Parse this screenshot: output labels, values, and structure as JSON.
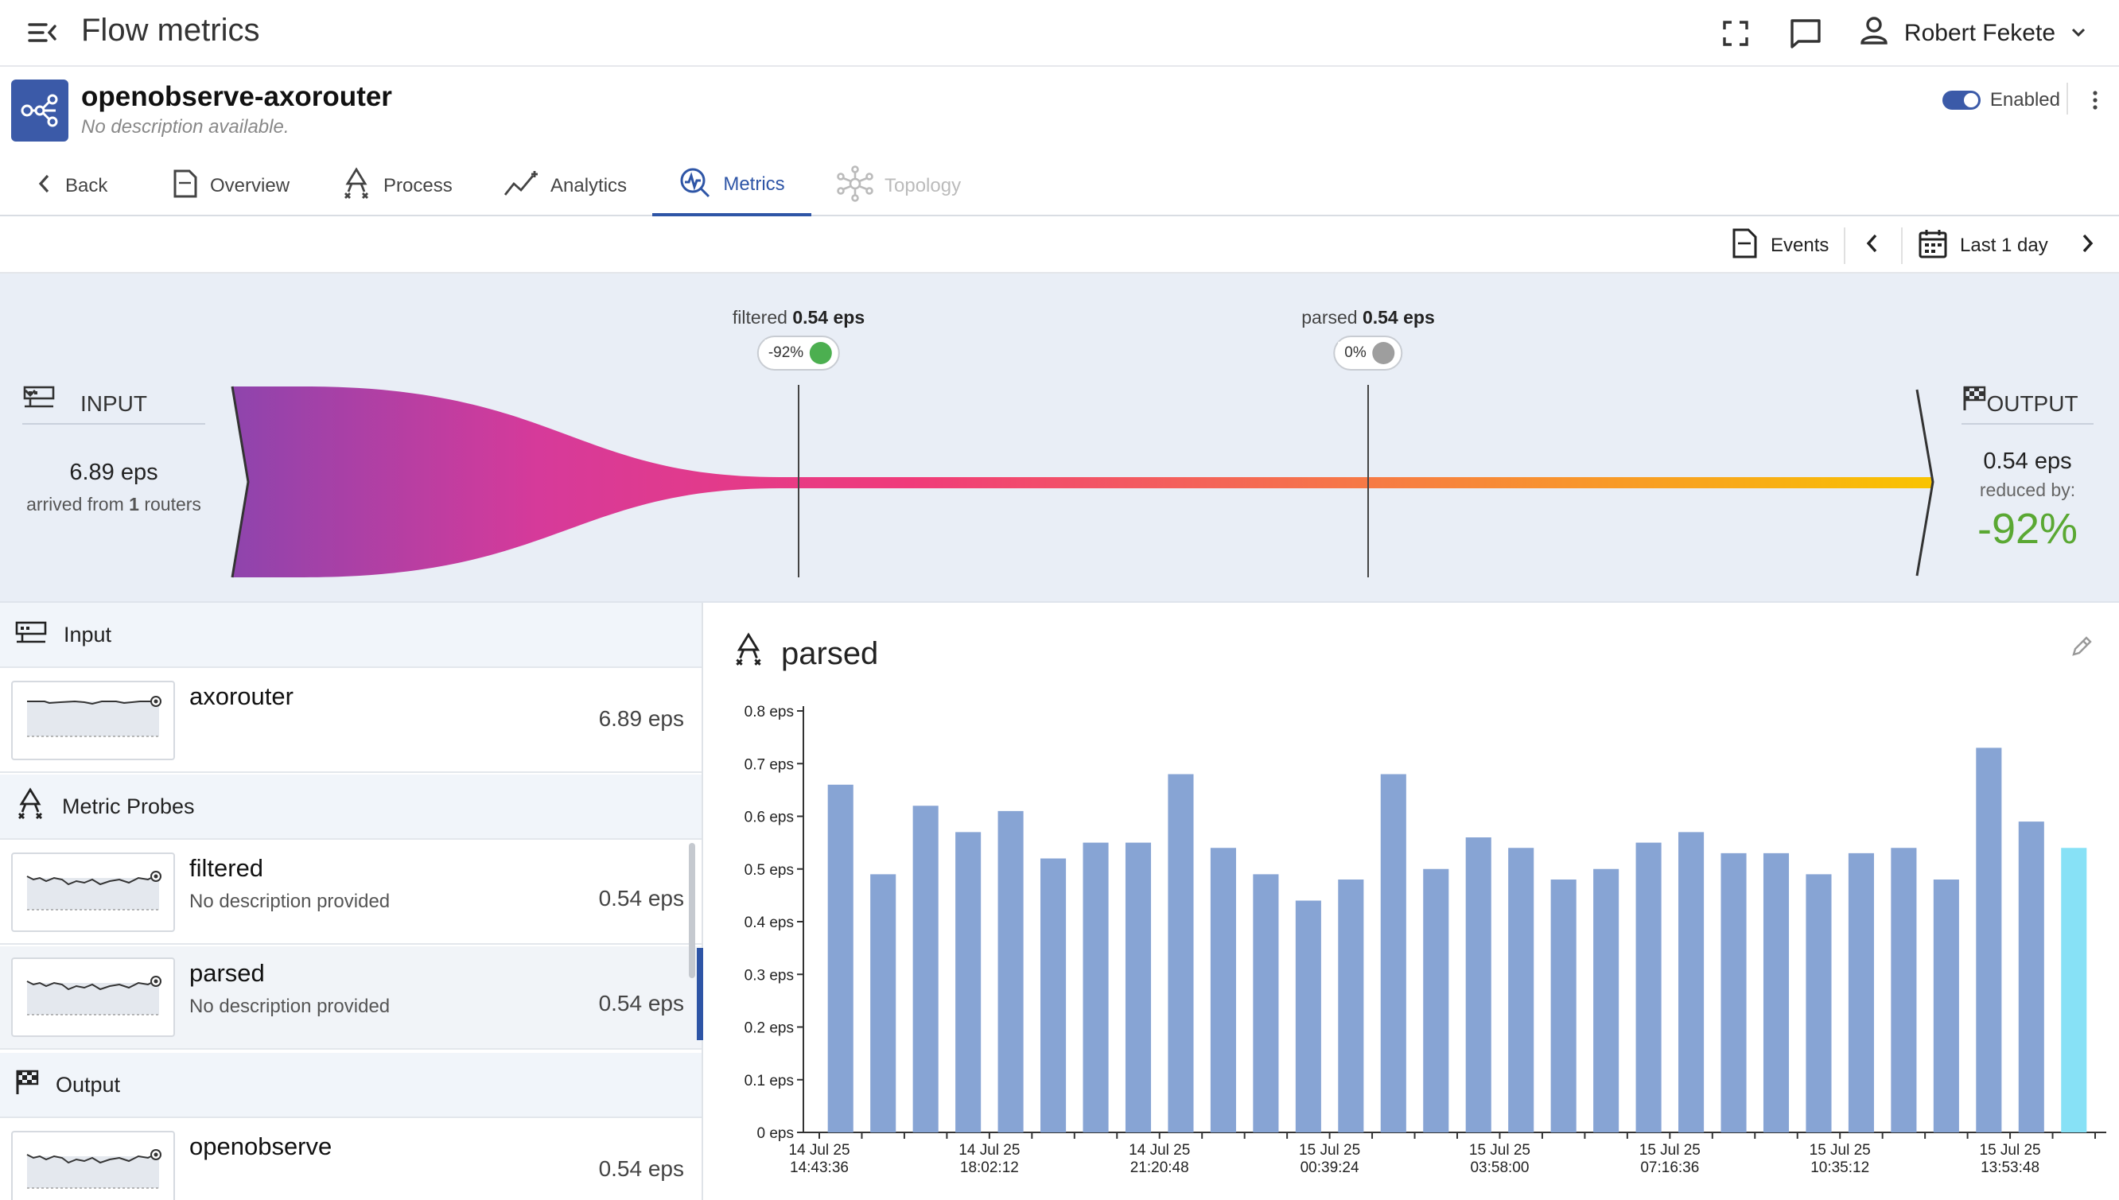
{
  "app": {
    "title": "Flow metrics",
    "user_name": "Robert Fekete",
    "icons": [
      "menu-collapse-icon",
      "fullscreen-icon",
      "chat-icon",
      "user-icon",
      "chevron-down-icon"
    ]
  },
  "pipeline": {
    "name": "openobserve-axorouter",
    "description": "No description available.",
    "enabled_label": "Enabled",
    "enabled": true
  },
  "tabs": [
    {
      "label": "Back",
      "icon": "chevron-left-icon"
    },
    {
      "label": "Overview",
      "icon": "document-icon"
    },
    {
      "label": "Process",
      "icon": "process-icon"
    },
    {
      "label": "Analytics",
      "icon": "analytics-icon"
    },
    {
      "label": "Metrics",
      "icon": "metrics-icon",
      "active": true
    },
    {
      "label": "Topology",
      "icon": "topology-icon",
      "disabled": true
    }
  ],
  "toolbar": {
    "events_label": "Events",
    "range_label": "Last 1 day"
  },
  "flow": {
    "input": {
      "label": "INPUT",
      "rate": "6.89 eps",
      "arrived_prefix": "arrived from",
      "router_count": "1",
      "arrived_suffix": "routers"
    },
    "output": {
      "label": "OUTPUT",
      "rate": "0.54 eps",
      "reduced_label": "reduced by:",
      "reduced_pct": "-92%"
    },
    "probes": [
      {
        "name": "filtered",
        "rate": "0.54 eps",
        "change": "-92%",
        "status": "down",
        "status_color": "#4caf50"
      },
      {
        "name": "parsed",
        "rate": "0.54 eps",
        "change": "0%",
        "status": "equal",
        "status_color": "#9e9e9e"
      }
    ],
    "gradient_colors": [
      "#8e44ad",
      "#d63a9a",
      "#f03b7a",
      "#f7813f",
      "#f9c400"
    ]
  },
  "left_panel": {
    "input_section": "Input",
    "probes_section": "Metric Probes",
    "output_section": "Output",
    "input_nodes": [
      {
        "name": "axorouter",
        "rate": "6.89 eps"
      }
    ],
    "probe_nodes": [
      {
        "name": "filtered",
        "description": "No description provided",
        "rate": "0.54 eps"
      },
      {
        "name": "parsed",
        "description": "No description provided",
        "rate": "0.54 eps",
        "selected": true
      }
    ],
    "output_nodes": [
      {
        "name": "openobserve",
        "rate": "0.54 eps"
      }
    ]
  },
  "chart_title": "parsed",
  "chart_data": {
    "type": "bar",
    "ylim": [
      0,
      0.8
    ],
    "y_ticks": [
      "0 eps",
      "0.1 eps",
      "0.2 eps",
      "0.3 eps",
      "0.4 eps",
      "0.5 eps",
      "0.6 eps",
      "0.7 eps",
      "0.8 eps"
    ],
    "x_tick_labels": [
      [
        "14 Jul 25",
        "14:43:36"
      ],
      [
        "14 Jul 25",
        "18:02:12"
      ],
      [
        "14 Jul 25",
        "21:20:48"
      ],
      [
        "15 Jul 25",
        "00:39:24"
      ],
      [
        "15 Jul 25",
        "03:58:00"
      ],
      [
        "15 Jul 25",
        "07:16:36"
      ],
      [
        "15 Jul 25",
        "10:35:12"
      ],
      [
        "15 Jul 25",
        "13:53:48"
      ]
    ],
    "values": [
      0.66,
      0.49,
      0.62,
      0.57,
      0.61,
      0.52,
      0.55,
      0.55,
      0.68,
      0.54,
      0.49,
      0.44,
      0.48,
      0.68,
      0.5,
      0.56,
      0.54,
      0.48,
      0.5,
      0.55,
      0.57,
      0.53,
      0.53,
      0.49,
      0.53,
      0.54,
      0.48,
      0.73,
      0.59,
      0.54
    ],
    "bar_color": "#87a4d4",
    "highlight_color": "#87e1f6",
    "highlight_index": 29
  }
}
